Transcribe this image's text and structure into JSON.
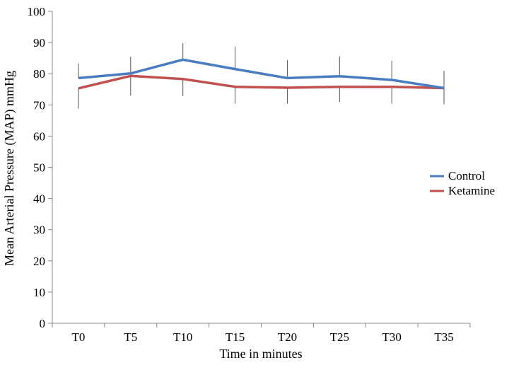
{
  "chart_data": {
    "type": "line",
    "title": "",
    "xlabel": "Time in minutes",
    "ylabel": "Mean Arterial Pressure (MAP) mmHg",
    "categories": [
      "T0",
      "T5",
      "T10",
      "T15",
      "T20",
      "T25",
      "T30",
      "T35"
    ],
    "ylim": [
      0,
      100
    ],
    "yticks": [
      0,
      10,
      20,
      30,
      40,
      50,
      60,
      70,
      80,
      90,
      100
    ],
    "grid": false,
    "legend_position": "right",
    "series": [
      {
        "name": "Control",
        "color": "#4a7dbf",
        "values": [
          78.6,
          80.1,
          84.5,
          81.5,
          78.6,
          79.2,
          78.0,
          75.4
        ],
        "error_bars": [
          [
            78.6,
            83.3
          ],
          [
            80.1,
            85.5
          ],
          [
            84.5,
            89.8
          ],
          [
            81.5,
            88.7
          ],
          [
            78.6,
            84.4
          ],
          [
            79.2,
            85.6
          ],
          [
            78.0,
            84.1
          ],
          [
            75.4,
            80.9
          ]
        ]
      },
      {
        "name": "Ketamine",
        "color": "#c0504d",
        "values": [
          75.3,
          79.3,
          78.3,
          75.8,
          75.5,
          75.8,
          75.8,
          75.4
        ],
        "error_bars": [
          [
            68.8,
            75.3
          ],
          [
            73.0,
            79.3
          ],
          [
            72.8,
            78.3
          ],
          [
            70.4,
            75.8
          ],
          [
            70.4,
            75.5
          ],
          [
            71.0,
            75.8
          ],
          [
            70.4,
            75.8
          ],
          [
            70.2,
            75.4
          ]
        ]
      }
    ]
  }
}
